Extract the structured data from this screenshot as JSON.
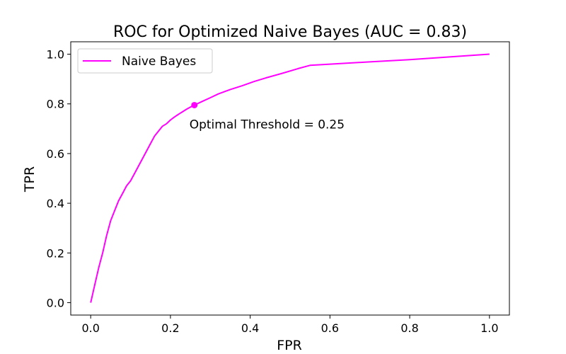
{
  "chart_data": {
    "type": "line",
    "title": "ROC for Optimized Naive Bayes (AUC =  0.83)",
    "xlabel": "FPR",
    "ylabel": "TPR",
    "xlim": [
      -0.05,
      1.05
    ],
    "ylim": [
      -0.05,
      1.05
    ],
    "xticks": [
      0.0,
      0.2,
      0.4,
      0.6,
      0.8,
      1.0
    ],
    "xtick_labels": [
      "0.0",
      "0.2",
      "0.4",
      "0.6",
      "0.8",
      "1.0"
    ],
    "yticks": [
      0.0,
      0.2,
      0.4,
      0.6,
      0.8,
      1.0
    ],
    "ytick_labels": [
      "0.0",
      "0.2",
      "0.4",
      "0.6",
      "0.8",
      "1.0"
    ],
    "grid": false,
    "legend_position": "top-left",
    "series": [
      {
        "name": "Naive Bayes",
        "color": "#ff00ff",
        "x": [
          0.0,
          0.01,
          0.02,
          0.03,
          0.04,
          0.05,
          0.06,
          0.07,
          0.08,
          0.09,
          0.1,
          0.11,
          0.12,
          0.13,
          0.14,
          0.15,
          0.16,
          0.17,
          0.18,
          0.19,
          0.2,
          0.21,
          0.22,
          0.23,
          0.24,
          0.25,
          0.26,
          0.28,
          0.3,
          0.32,
          0.35,
          0.38,
          0.41,
          0.44,
          0.48,
          0.52,
          0.55,
          0.6,
          0.7,
          0.8,
          0.9,
          1.0
        ],
        "y": [
          0.0,
          0.07,
          0.14,
          0.2,
          0.27,
          0.33,
          0.37,
          0.41,
          0.44,
          0.47,
          0.49,
          0.52,
          0.55,
          0.58,
          0.61,
          0.64,
          0.67,
          0.69,
          0.71,
          0.72,
          0.735,
          0.747,
          0.758,
          0.768,
          0.778,
          0.787,
          0.795,
          0.81,
          0.825,
          0.84,
          0.858,
          0.873,
          0.89,
          0.905,
          0.923,
          0.942,
          0.955,
          0.96,
          0.969,
          0.978,
          0.989,
          1.0
        ]
      }
    ],
    "highlight_point": {
      "x": 0.26,
      "y": 0.795,
      "color": "#ff00ff"
    },
    "annotation": "Optimal Threshold = 0.25"
  }
}
